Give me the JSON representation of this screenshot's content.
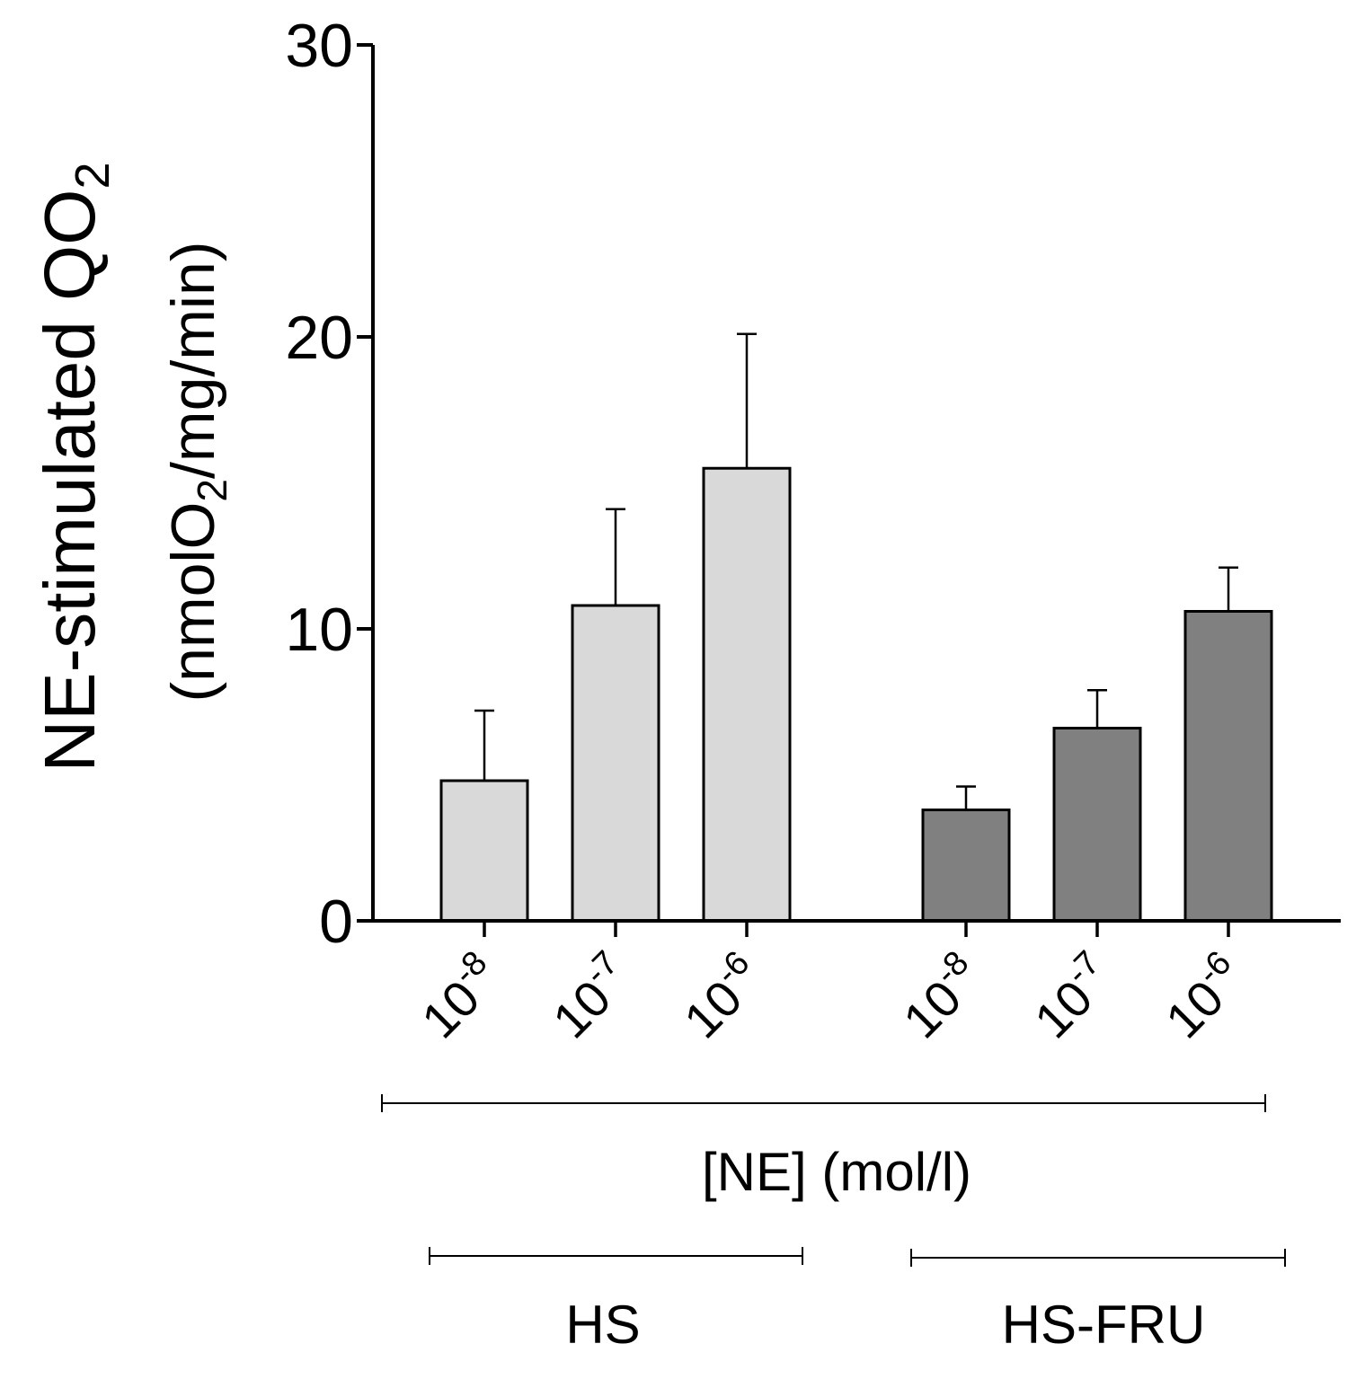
{
  "chart_data": {
    "type": "bar",
    "ylabel": {
      "line1_main": "NE-stimulated QO",
      "line1_sub": "2",
      "line2_pre": "(nmolO",
      "line2_sub": "2",
      "line2_post": "/mg/min)"
    },
    "xlabel": "[NE] (mol/l)",
    "ylim": [
      0,
      30
    ],
    "yticks": [
      "0",
      "10",
      "20",
      "30"
    ],
    "ytick_values": [
      0,
      10,
      20,
      30
    ],
    "tick_base": "10",
    "groups": [
      {
        "name": "HS",
        "color": "#d9d9d9",
        "bars": [
          {
            "tick_exp": "-8",
            "value": 4.8,
            "error": 2.4
          },
          {
            "tick_exp": "-7",
            "value": 10.8,
            "error": 3.3
          },
          {
            "tick_exp": "-6",
            "value": 15.5,
            "error": 4.6
          }
        ]
      },
      {
        "name": "HS-FRU",
        "color": "#808080",
        "bars": [
          {
            "tick_exp": "-8",
            "value": 3.8,
            "error": 0.8
          },
          {
            "tick_exp": "-7",
            "value": 6.6,
            "error": 1.3
          },
          {
            "tick_exp": "-6",
            "value": 10.6,
            "error": 1.5
          }
        ]
      }
    ]
  }
}
